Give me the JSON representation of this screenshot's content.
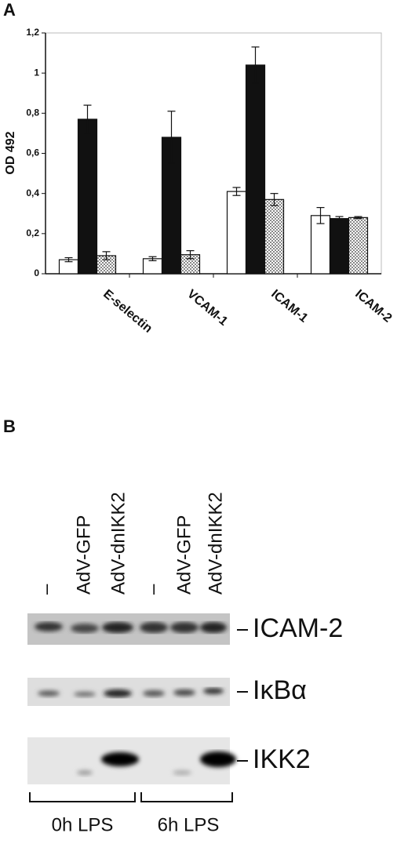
{
  "chart_data": {
    "type": "bar",
    "panel": "A",
    "y_label": "OD 492",
    "categories": [
      "E-selectin",
      "VCAM-1",
      "ICAM-1",
      "ICAM-2"
    ],
    "series": [
      {
        "color": "#ffffff",
        "values": [
          0.07,
          0.075,
          0.41,
          0.29
        ],
        "errors": [
          0.01,
          0.01,
          0.02,
          0.04
        ]
      },
      {
        "color": "#111111",
        "values": [
          0.77,
          0.68,
          1.04,
          0.275
        ],
        "errors": [
          0.07,
          0.13,
          0.09,
          0.01
        ]
      },
      {
        "color": "#ffffff",
        "hatch": "dots",
        "values": [
          0.09,
          0.095,
          0.37,
          0.28
        ],
        "errors": [
          0.02,
          0.02,
          0.03,
          0.005
        ]
      }
    ],
    "ylim": [
      0,
      1.2
    ],
    "yticks": [
      0,
      {
        "value": 0.2,
        "label": "0,2"
      },
      {
        "value": 0.4,
        "label": "0,4"
      },
      {
        "value": 0.6,
        "label": "0,6"
      },
      {
        "value": 0.8,
        "label": "0,8"
      },
      1,
      {
        "value": 1.2,
        "label": "1,2"
      }
    ]
  },
  "panel_b": {
    "panel": "B",
    "lanes": [
      "–",
      "AdV-GFP",
      "AdV-dnIKK2",
      "–",
      "AdV-GFP",
      "AdV-dnIKK2"
    ],
    "blots": [
      "ICAM-2",
      "IκBα",
      "IKK2"
    ],
    "groups": [
      "0h LPS",
      "6h LPS"
    ]
  }
}
